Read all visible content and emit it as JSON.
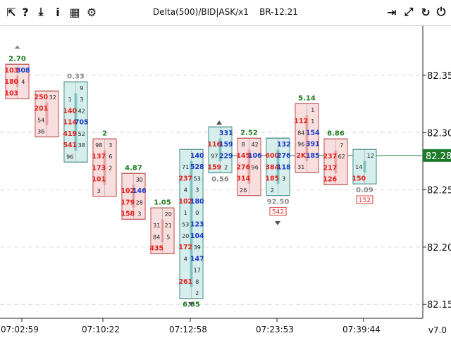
{
  "toolbar": {
    "left_icons": [
      "cursor-arrow-icon",
      "help-icon",
      "download-icon",
      "info-icon",
      "chart-window-icon",
      "gear-icon"
    ],
    "right_icons": [
      "exit-icon",
      "expand-icon",
      "refresh-icon",
      "power-icon"
    ],
    "title": "Delta(500)/BID|ASK/x1",
    "symbol": "BR-12.21",
    "version": "v7.0"
  },
  "colors": {
    "up_bg": "#d6eeec",
    "up_border": "#4f9a92",
    "up_dark": "#7ecdc7",
    "down_bg": "#f9dede",
    "down_border": "#c95a5a",
    "down_dark": "#f2aaaa",
    "bid_text": "#e4211f",
    "ask_text": "#1a39c4",
    "label_green": "#1f7a1f",
    "price_tag": "#1d7a2b",
    "grid": "#dddddd"
  },
  "chart_data": {
    "type": "footprint",
    "y_ticks": [
      "82.35",
      "82.30",
      "82.25",
      "82.20",
      "82.15"
    ],
    "x_ticks": [
      "07:02:59",
      "07:10:22",
      "07:12:58",
      "07:23:53",
      "07:39:44"
    ],
    "current_price": "82.28",
    "candles": [
      {
        "dir": "down",
        "delta_top": "2.70",
        "cells": [
          [
            "103",
            "308"
          ],
          [
            "180",
            "4"
          ],
          [
            "103",
            ""
          ]
        ]
      },
      {
        "dir": "down",
        "cells": [
          [
            "250",
            "32"
          ],
          [
            "201",
            ""
          ],
          [
            "54",
            ""
          ],
          [
            "36",
            ""
          ]
        ]
      },
      {
        "dir": "up",
        "delta_top": "0.33",
        "cells": [
          [
            "",
            "9"
          ],
          [
            "1",
            "3"
          ],
          [
            "140",
            "42"
          ],
          [
            "114",
            "705"
          ],
          [
            "419",
            "52"
          ],
          [
            "541",
            "38"
          ],
          [
            "96",
            ""
          ]
        ]
      },
      {
        "dir": "down",
        "delta_top": "2",
        "cells": [
          [
            "98",
            "3"
          ],
          [
            "137",
            "6"
          ],
          [
            "173",
            "2"
          ],
          [
            "101",
            ""
          ],
          [
            "3",
            ""
          ]
        ]
      },
      {
        "dir": "down",
        "delta_top": "4.87",
        "cells": [
          [
            "",
            "30"
          ],
          [
            "102",
            "146"
          ],
          [
            "179",
            "28"
          ],
          [
            "158",
            "3"
          ]
        ]
      },
      {
        "dir": "down",
        "delta_top": "1.05",
        "cells": [
          [
            "",
            "20"
          ],
          [
            "31",
            "21"
          ],
          [
            "84",
            "5"
          ],
          [
            "435",
            ""
          ]
        ]
      },
      {
        "dir": "up",
        "delta_bottom": "6.85",
        "cells": [
          [
            "",
            "140"
          ],
          [
            "71",
            "528"
          ],
          [
            "237",
            "53"
          ],
          [
            "4",
            "3"
          ],
          [
            "102",
            "180"
          ],
          [
            "1",
            "0"
          ],
          [
            "53",
            "123"
          ],
          [
            "20",
            "104"
          ],
          [
            "172",
            "39"
          ],
          [
            "4",
            "147"
          ],
          [
            "",
            "17"
          ],
          [
            "261",
            "8"
          ],
          [
            "",
            "2"
          ]
        ]
      },
      {
        "dir": "up",
        "delta_bottom": "0.56",
        "cells": [
          [
            "",
            "331"
          ],
          [
            "116",
            "159"
          ],
          [
            "97",
            "229"
          ],
          [
            "159",
            "2"
          ]
        ]
      },
      {
        "dir": "down",
        "delta_top": "2.52",
        "cells": [
          [
            "8",
            "42"
          ],
          [
            "145",
            "106"
          ],
          [
            "276",
            "96"
          ],
          [
            "314",
            ""
          ],
          [
            "26",
            ""
          ]
        ]
      },
      {
        "dir": "up",
        "delta_bottom": "92.50",
        "badge": "542",
        "cells": [
          [
            "",
            "132"
          ],
          [
            "600",
            "276"
          ],
          [
            "384",
            "118"
          ],
          [
            "185",
            "3"
          ],
          [
            "2",
            ""
          ]
        ]
      },
      {
        "dir": "down",
        "delta_top": "5.14",
        "cells": [
          [
            "",
            "1"
          ],
          [
            "112",
            "1"
          ],
          [
            "84",
            "154"
          ],
          [
            "96",
            "391"
          ],
          [
            "2K",
            "185"
          ],
          [
            "31",
            ""
          ]
        ]
      },
      {
        "dir": "down",
        "delta_top": "8.86",
        "cells": [
          [
            "",
            "7"
          ],
          [
            "237",
            "62"
          ],
          [
            "217",
            ""
          ],
          [
            "126",
            ""
          ]
        ]
      },
      {
        "dir": "up",
        "delta_bottom": "0.09",
        "badge": "152",
        "cells": [
          [
            "",
            "12"
          ],
          [
            "14",
            ""
          ],
          [
            "150",
            ""
          ]
        ]
      }
    ]
  }
}
